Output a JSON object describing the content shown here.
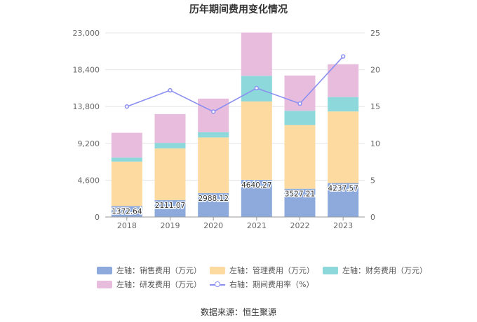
{
  "chart_data": {
    "type": "bar",
    "title": "历年期间费用变化情况",
    "categories": [
      "2018",
      "2019",
      "2020",
      "2021",
      "2022",
      "2023"
    ],
    "y_left": {
      "ticks": [
        "0",
        "4,600",
        "9,200",
        "13,800",
        "18,400",
        "23,000"
      ],
      "ylim": [
        0,
        23000
      ]
    },
    "y_right": {
      "ticks": [
        "0",
        "5",
        "10",
        "15",
        "20",
        "25"
      ],
      "ylim": [
        0,
        25
      ]
    },
    "series": [
      {
        "name": "左轴：销售费用（万元）",
        "axis": "left",
        "color": "#8eaadc",
        "values": [
          1372.64,
          2111.07,
          2988.12,
          4640.27,
          3527.21,
          4237.57
        ],
        "labels": [
          "1372.64",
          "2111.07",
          "2988.12",
          "4640.27",
          "3527.21",
          "4237.57"
        ]
      },
      {
        "name": "左轴：管理费用（万元）",
        "axis": "left",
        "color": "#fddba0",
        "values": [
          5550,
          6450,
          6950,
          9800,
          7950,
          8950
        ]
      },
      {
        "name": "左轴：财务费用（万元）",
        "axis": "left",
        "color": "#8dd8da",
        "values": [
          500,
          700,
          650,
          3200,
          1800,
          1800
        ]
      },
      {
        "name": "左轴：研发费用（万元）",
        "axis": "left",
        "color": "#e8bcdc",
        "values": [
          3100,
          3600,
          4200,
          5400,
          4400,
          4100
        ]
      },
      {
        "name": "右轴：期间费用率（%）",
        "axis": "right",
        "type": "line",
        "color": "#8b8ff2",
        "values": [
          15.0,
          17.2,
          14.3,
          17.5,
          15.4,
          21.8
        ]
      }
    ],
    "grid": true,
    "legend_position": "bottom"
  },
  "source": "数据来源：恒生聚源"
}
